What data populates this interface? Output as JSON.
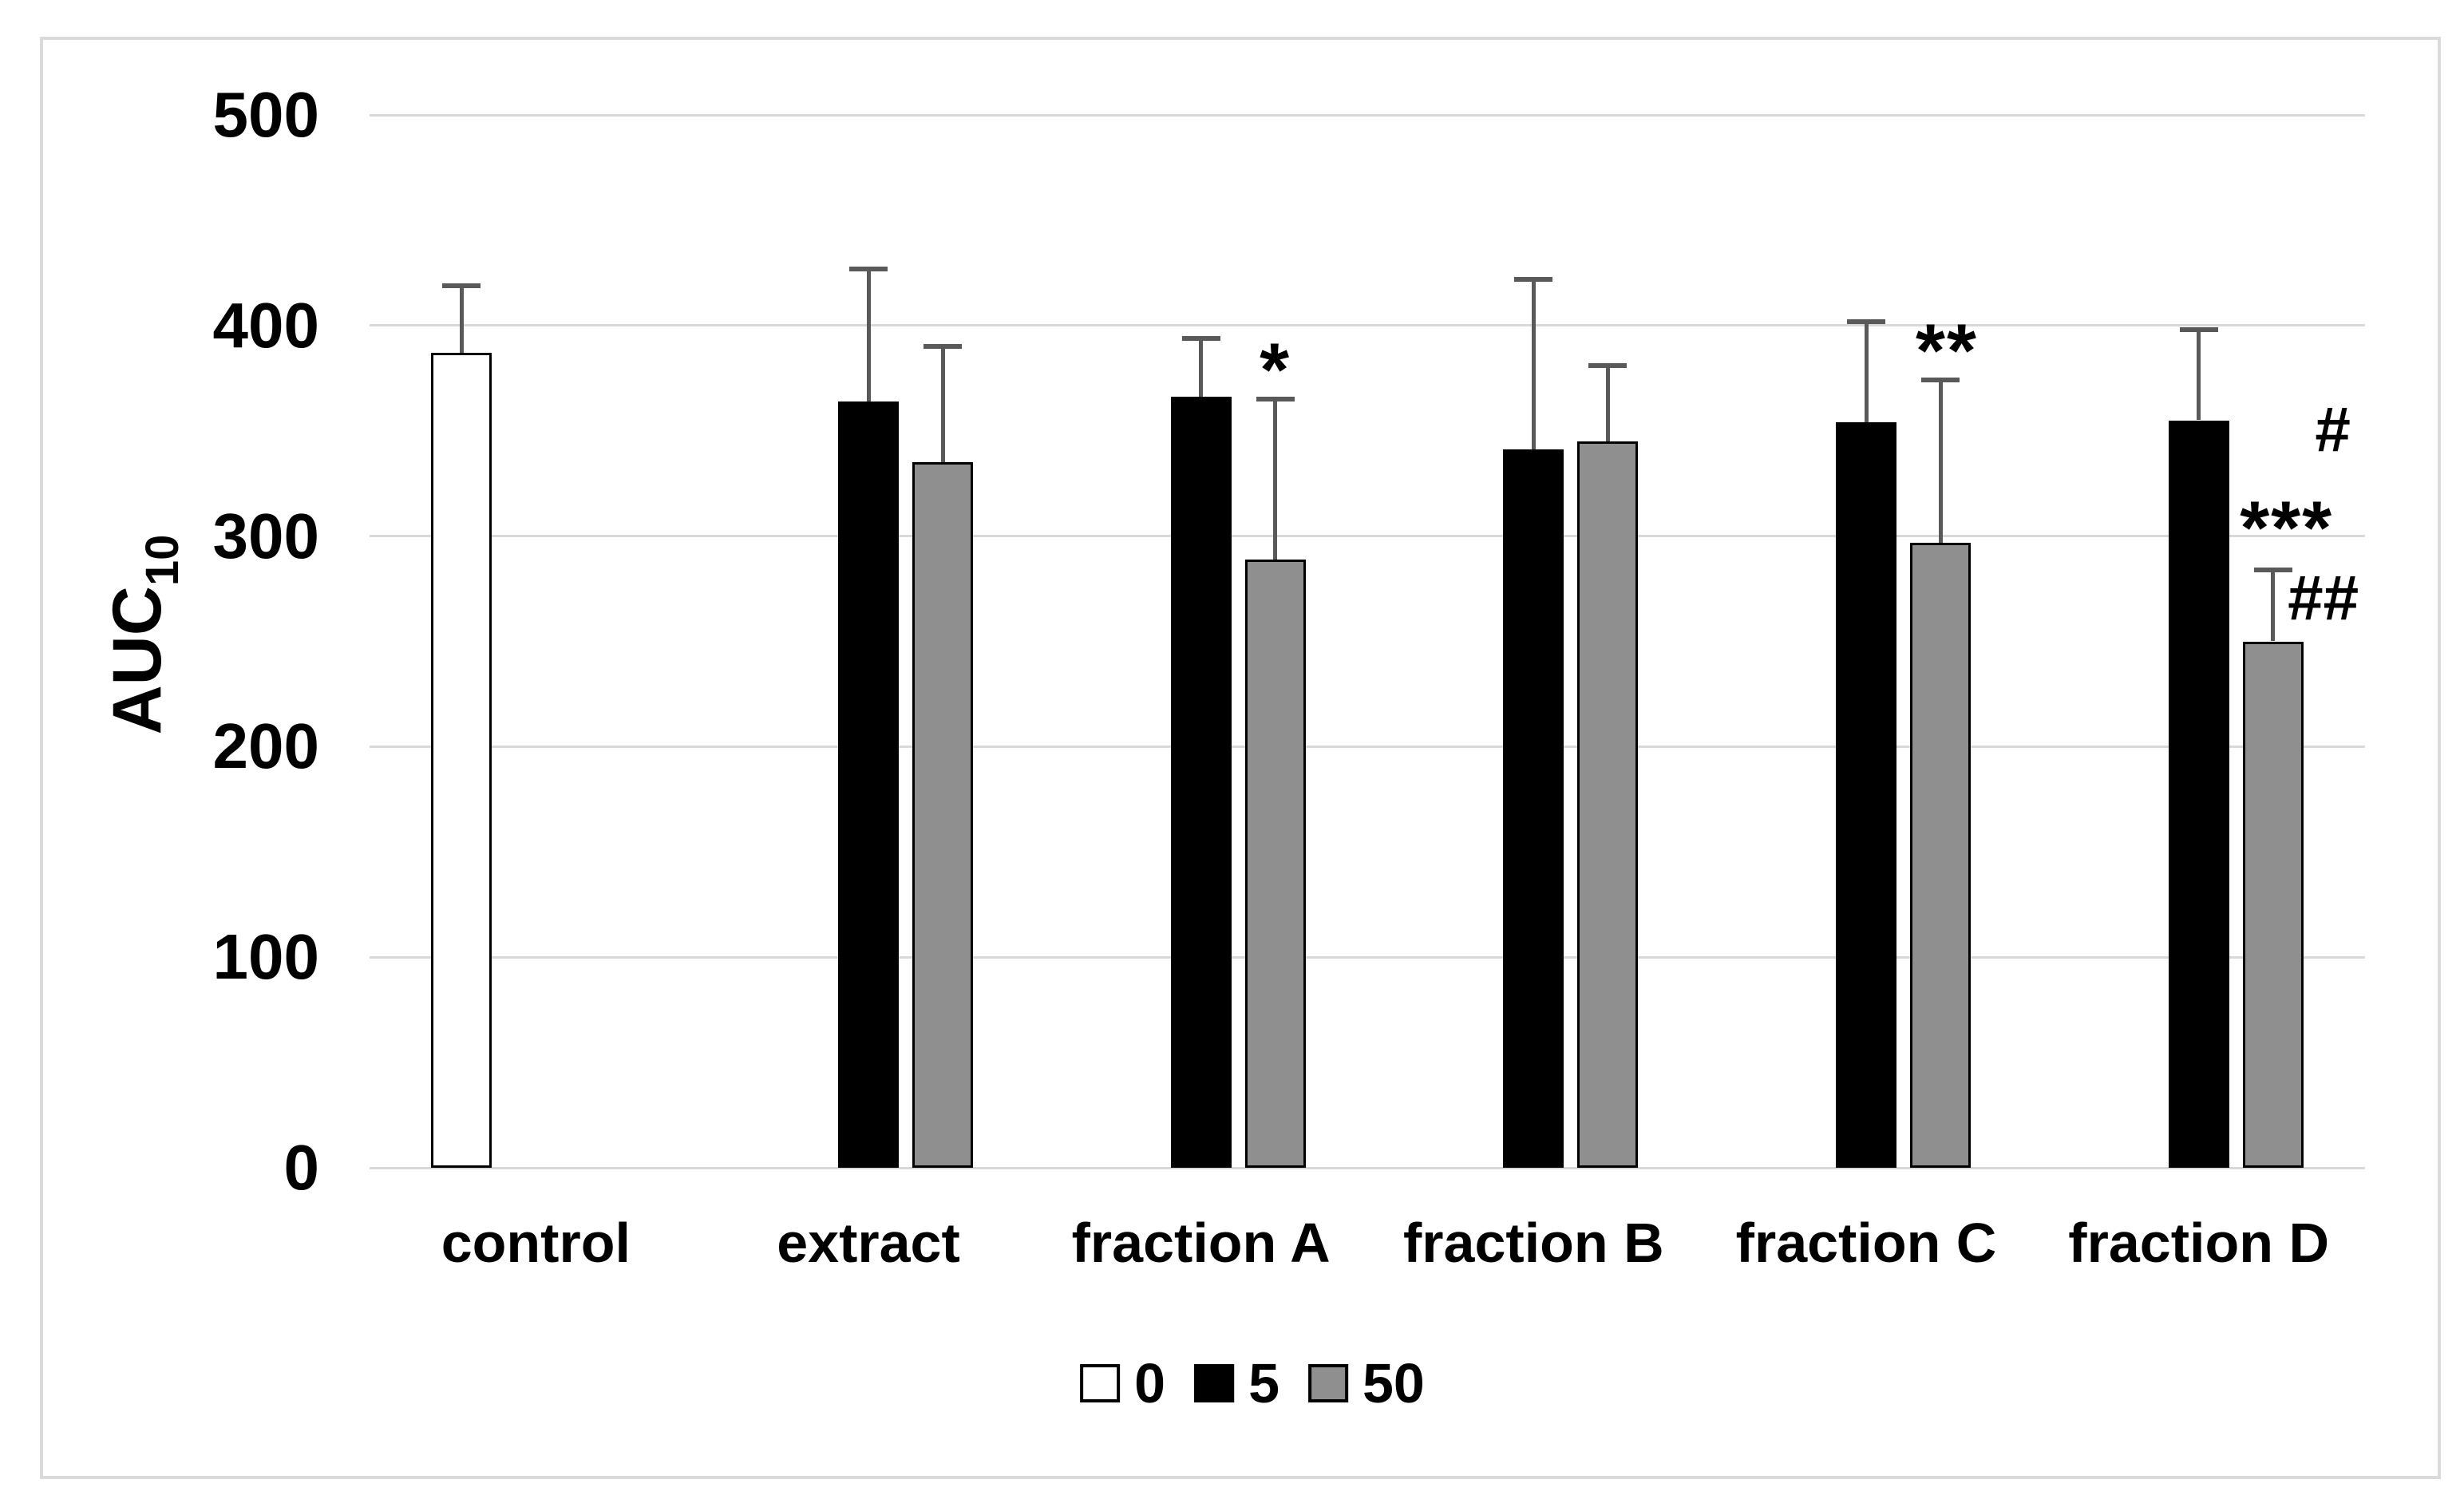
{
  "page": {
    "background": "#ffffff",
    "frame_border_color": "#dadada",
    "gridline_color": "#d9d9d9",
    "error_bar_color": "#595959"
  },
  "chart_data": {
    "type": "bar",
    "title": "",
    "ylabel": "AUC",
    "ylabel_subscript": "10",
    "xlabel": "",
    "ylim": [
      0,
      500
    ],
    "yticks": [
      0,
      100,
      200,
      300,
      400,
      500
    ],
    "grid": true,
    "legend_position": "bottom",
    "categories": [
      "control",
      "extract",
      "fraction A",
      "fraction B",
      "fraction C",
      "fraction D"
    ],
    "series": [
      {
        "name": "0",
        "color": "#ffffff",
        "values": [
          387,
          null,
          null,
          null,
          null,
          null
        ],
        "error_up": [
          32,
          null,
          null,
          null,
          null,
          null
        ]
      },
      {
        "name": "5",
        "color": "#000000",
        "values": [
          null,
          364,
          366,
          341,
          354,
          355
        ],
        "error_up": [
          null,
          63,
          28,
          81,
          48,
          43
        ]
      },
      {
        "name": "50",
        "color": "#8f8f8f",
        "values": [
          null,
          335,
          289,
          345,
          297,
          250
        ],
        "error_up": [
          null,
          55,
          76,
          36,
          77,
          34
        ]
      }
    ],
    "legend_labels": [
      "0",
      "5",
      "50"
    ],
    "annotations": [
      {
        "text": "*",
        "category": "fraction A",
        "series": "50",
        "y_value": 386,
        "x_offset": 0
      },
      {
        "text": "**",
        "category": "fraction C",
        "series": "50",
        "y_value": 395,
        "x_offset": 8
      },
      {
        "text": "#",
        "category": "fraction D",
        "series": "50",
        "y_value": 350,
        "x_offset": 75
      },
      {
        "text": "***",
        "category": "fraction D",
        "series": "50",
        "y_value": 311,
        "x_offset": 17
      },
      {
        "text": "##",
        "category": "fraction D",
        "series": "50",
        "y_value": 270,
        "x_offset": 63
      }
    ]
  }
}
